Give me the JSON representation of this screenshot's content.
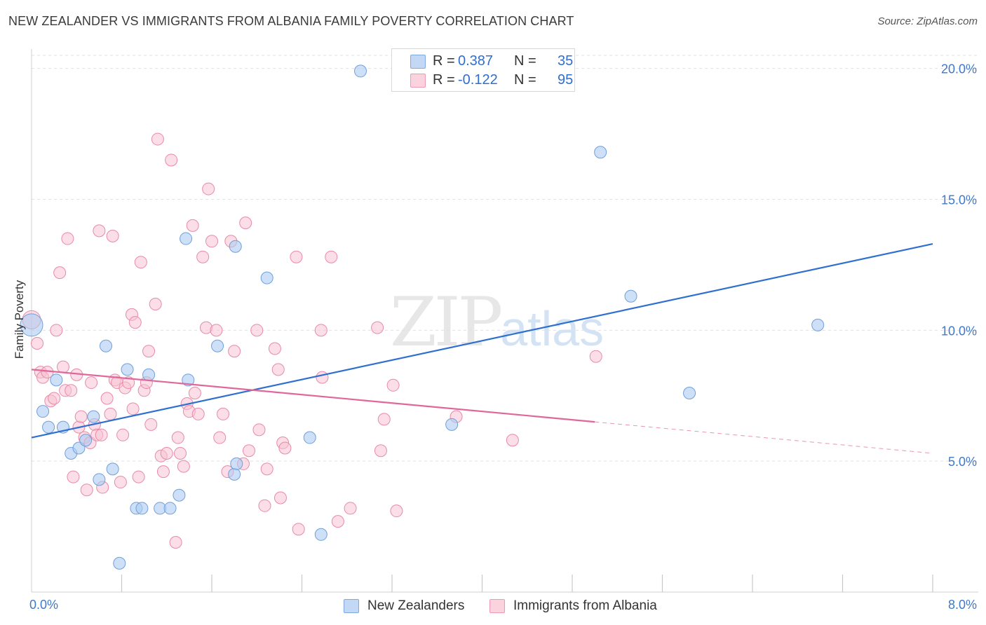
{
  "title": "NEW ZEALANDER VS IMMIGRANTS FROM ALBANIA FAMILY POVERTY CORRELATION CHART",
  "source": "Source: ZipAtlas.com",
  "watermark": {
    "zip": "ZIP",
    "atlas": "atlas"
  },
  "legend_top": [
    {
      "r_label": "R =",
      "r_value": "0.387",
      "n_label": "N =",
      "n_value": "35"
    },
    {
      "r_label": "R =",
      "r_value": "-0.122",
      "n_label": "N =",
      "n_value": "95"
    }
  ],
  "legend_bottom": [
    {
      "label": "New Zealanders"
    },
    {
      "label": "Immigrants from Albania"
    }
  ],
  "colors": {
    "blue_fill": "#aecbf1",
    "blue_stroke": "#6e9fdc",
    "blue_line": "#2e6fd0",
    "pink_fill": "#f7c3d3",
    "pink_stroke": "#e88aa8",
    "pink_line": "#e0679a",
    "grid": "#e1e1e1",
    "axis_text": "#3f79c9"
  },
  "chart_data": {
    "type": "scatter",
    "title": "NEW ZEALANDER VS IMMIGRANTS FROM ALBANIA FAMILY POVERTY CORRELATION CHART",
    "xlabel": "",
    "ylabel": "Family Poverty",
    "xlim": [
      0,
      8
    ],
    "ylim": [
      0,
      20.5
    ],
    "x_tick_labels": [
      {
        "value": 0,
        "label": "0.0%"
      },
      {
        "value": 8,
        "label": "8.0%"
      }
    ],
    "y_tick_labels": [
      {
        "value": 5,
        "label": "5.0%"
      },
      {
        "value": 10,
        "label": "10.0%"
      },
      {
        "value": 15,
        "label": "15.0%"
      },
      {
        "value": 20,
        "label": "20.0%"
      }
    ],
    "x_minor_ticks": [
      0.8,
      1.6,
      2.4,
      3.2,
      4.0,
      4.8,
      5.6,
      6.4,
      7.2,
      8.0
    ],
    "series": [
      {
        "name": "New Zealanders",
        "r": 0.387,
        "n": 35,
        "trend": {
          "x0": 0,
          "y0": 5.9,
          "x1": 8,
          "y1": 13.3
        },
        "points": [
          {
            "x": 0.0,
            "y": 10.2,
            "big": true
          },
          {
            "x": 0.1,
            "y": 6.9
          },
          {
            "x": 0.15,
            "y": 6.3
          },
          {
            "x": 0.22,
            "y": 8.1
          },
          {
            "x": 0.28,
            "y": 6.3
          },
          {
            "x": 0.35,
            "y": 5.3
          },
          {
            "x": 0.42,
            "y": 5.5
          },
          {
            "x": 0.48,
            "y": 5.8
          },
          {
            "x": 0.55,
            "y": 6.7
          },
          {
            "x": 0.6,
            "y": 4.3
          },
          {
            "x": 0.66,
            "y": 9.4
          },
          {
            "x": 0.72,
            "y": 4.7
          },
          {
            "x": 0.78,
            "y": 1.1
          },
          {
            "x": 0.85,
            "y": 8.5
          },
          {
            "x": 0.93,
            "y": 3.2
          },
          {
            "x": 0.98,
            "y": 3.2
          },
          {
            "x": 1.04,
            "y": 8.3
          },
          {
            "x": 1.14,
            "y": 3.2
          },
          {
            "x": 1.23,
            "y": 3.2
          },
          {
            "x": 1.31,
            "y": 3.7
          },
          {
            "x": 1.37,
            "y": 13.5
          },
          {
            "x": 1.39,
            "y": 8.1
          },
          {
            "x": 1.65,
            "y": 9.4
          },
          {
            "x": 1.8,
            "y": 4.5
          },
          {
            "x": 1.82,
            "y": 4.9
          },
          {
            "x": 1.81,
            "y": 13.2
          },
          {
            "x": 2.09,
            "y": 12.0
          },
          {
            "x": 2.47,
            "y": 5.9
          },
          {
            "x": 2.57,
            "y": 2.2
          },
          {
            "x": 2.92,
            "y": 19.9
          },
          {
            "x": 3.73,
            "y": 6.4
          },
          {
            "x": 5.05,
            "y": 16.8
          },
          {
            "x": 5.32,
            "y": 11.3
          },
          {
            "x": 5.84,
            "y": 7.6
          },
          {
            "x": 6.98,
            "y": 10.2
          }
        ]
      },
      {
        "name": "Immigrants from Albania",
        "r": -0.122,
        "n": 95,
        "trend": {
          "x0": 0,
          "y0": 8.5,
          "x1": 5.0,
          "y1": 6.5,
          "dash_x1": 8,
          "dash_y1": 5.3
        },
        "points": [
          {
            "x": 0.0,
            "y": 10.4,
            "big": true
          },
          {
            "x": 0.05,
            "y": 9.5
          },
          {
            "x": 0.08,
            "y": 8.4
          },
          {
            "x": 0.1,
            "y": 8.2
          },
          {
            "x": 0.14,
            "y": 8.4
          },
          {
            "x": 0.17,
            "y": 7.3
          },
          {
            "x": 0.2,
            "y": 7.4
          },
          {
            "x": 0.22,
            "y": 10.0
          },
          {
            "x": 0.25,
            "y": 12.2
          },
          {
            "x": 0.28,
            "y": 8.6
          },
          {
            "x": 0.3,
            "y": 7.7
          },
          {
            "x": 0.32,
            "y": 13.5
          },
          {
            "x": 0.35,
            "y": 7.7
          },
          {
            "x": 0.37,
            "y": 4.4
          },
          {
            "x": 0.4,
            "y": 8.3
          },
          {
            "x": 0.42,
            "y": 6.3
          },
          {
            "x": 0.44,
            "y": 6.7
          },
          {
            "x": 0.47,
            "y": 5.9
          },
          {
            "x": 0.49,
            "y": 3.9
          },
          {
            "x": 0.52,
            "y": 5.7
          },
          {
            "x": 0.53,
            "y": 8.0
          },
          {
            "x": 0.56,
            "y": 6.4
          },
          {
            "x": 0.58,
            "y": 6.0
          },
          {
            "x": 0.6,
            "y": 13.8
          },
          {
            "x": 0.62,
            "y": 6.0
          },
          {
            "x": 0.63,
            "y": 4.0
          },
          {
            "x": 0.67,
            "y": 7.4
          },
          {
            "x": 0.7,
            "y": 6.8
          },
          {
            "x": 0.72,
            "y": 13.6
          },
          {
            "x": 0.74,
            "y": 8.1
          },
          {
            "x": 0.76,
            "y": 8.0
          },
          {
            "x": 0.79,
            "y": 4.2
          },
          {
            "x": 0.81,
            "y": 6.0
          },
          {
            "x": 0.83,
            "y": 7.8
          },
          {
            "x": 0.86,
            "y": 8.0
          },
          {
            "x": 0.89,
            "y": 10.6
          },
          {
            "x": 0.9,
            "y": 7.0
          },
          {
            "x": 0.92,
            "y": 10.3
          },
          {
            "x": 0.95,
            "y": 4.4
          },
          {
            "x": 0.97,
            "y": 12.6
          },
          {
            "x": 1.0,
            "y": 7.7
          },
          {
            "x": 1.02,
            "y": 8.0
          },
          {
            "x": 1.04,
            "y": 9.2
          },
          {
            "x": 1.06,
            "y": 6.4
          },
          {
            "x": 1.1,
            "y": 11.0
          },
          {
            "x": 1.12,
            "y": 17.3
          },
          {
            "x": 1.15,
            "y": 5.2
          },
          {
            "x": 1.17,
            "y": 4.6
          },
          {
            "x": 1.2,
            "y": 5.3
          },
          {
            "x": 1.24,
            "y": 16.5
          },
          {
            "x": 1.28,
            "y": 1.9
          },
          {
            "x": 1.3,
            "y": 5.9
          },
          {
            "x": 1.32,
            "y": 5.3
          },
          {
            "x": 1.35,
            "y": 4.8
          },
          {
            "x": 1.38,
            "y": 7.2
          },
          {
            "x": 1.4,
            "y": 6.9
          },
          {
            "x": 1.43,
            "y": 14.0
          },
          {
            "x": 1.45,
            "y": 7.6
          },
          {
            "x": 1.48,
            "y": 6.8
          },
          {
            "x": 1.52,
            "y": 12.8
          },
          {
            "x": 1.55,
            "y": 10.1
          },
          {
            "x": 1.57,
            "y": 15.4
          },
          {
            "x": 1.6,
            "y": 13.4
          },
          {
            "x": 1.64,
            "y": 10.0
          },
          {
            "x": 1.67,
            "y": 5.9
          },
          {
            "x": 1.7,
            "y": 6.8
          },
          {
            "x": 1.74,
            "y": 4.6
          },
          {
            "x": 1.77,
            "y": 13.4
          },
          {
            "x": 1.8,
            "y": 9.2
          },
          {
            "x": 1.88,
            "y": 4.9
          },
          {
            "x": 1.9,
            "y": 14.1
          },
          {
            "x": 1.93,
            "y": 5.4
          },
          {
            "x": 2.0,
            "y": 10.0
          },
          {
            "x": 2.02,
            "y": 6.2
          },
          {
            "x": 2.07,
            "y": 3.3
          },
          {
            "x": 2.09,
            "y": 4.7
          },
          {
            "x": 2.16,
            "y": 9.3
          },
          {
            "x": 2.19,
            "y": 8.5
          },
          {
            "x": 2.21,
            "y": 3.6
          },
          {
            "x": 2.23,
            "y": 5.7
          },
          {
            "x": 2.25,
            "y": 5.5
          },
          {
            "x": 2.35,
            "y": 12.8
          },
          {
            "x": 2.37,
            "y": 2.4
          },
          {
            "x": 2.57,
            "y": 10.0
          },
          {
            "x": 2.58,
            "y": 8.2
          },
          {
            "x": 2.66,
            "y": 12.8
          },
          {
            "x": 2.72,
            "y": 2.7
          },
          {
            "x": 2.83,
            "y": 3.2
          },
          {
            "x": 3.07,
            "y": 10.1
          },
          {
            "x": 3.1,
            "y": 5.4
          },
          {
            "x": 3.13,
            "y": 6.6
          },
          {
            "x": 3.21,
            "y": 7.9
          },
          {
            "x": 3.24,
            "y": 3.1
          },
          {
            "x": 3.77,
            "y": 6.7
          },
          {
            "x": 4.27,
            "y": 5.8
          },
          {
            "x": 5.01,
            "y": 9.0
          }
        ]
      }
    ]
  }
}
